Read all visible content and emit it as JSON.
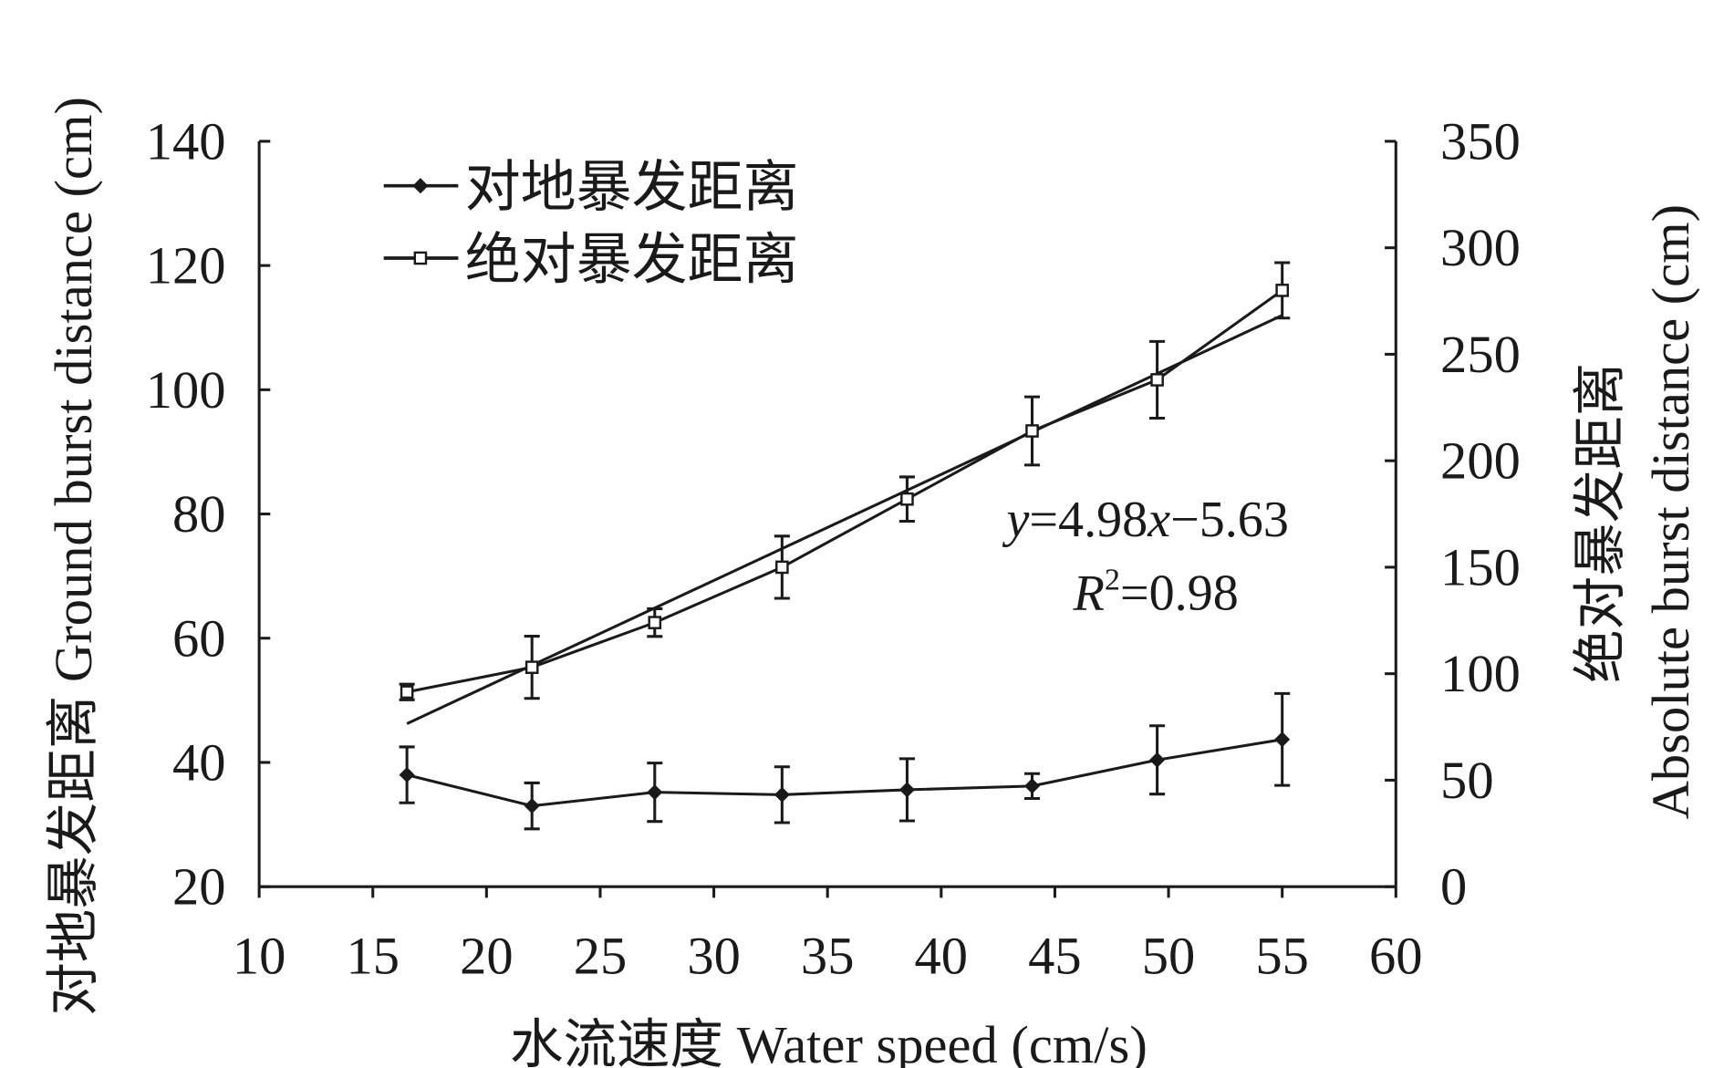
{
  "chart_data": {
    "type": "line",
    "xlabel": "水流速度 Water speed (cm/s)",
    "ylabel_left": "对地暴发距离 Ground burst distance (cm)",
    "ylabel_right_cn": "绝对暴发距离",
    "ylabel_right_en": "Absolute burst distance (cm)",
    "xlim": [
      10,
      60
    ],
    "xticks": [
      10,
      15,
      20,
      25,
      30,
      35,
      40,
      45,
      50,
      55,
      60
    ],
    "ylim_left": [
      20,
      140
    ],
    "yticks_left": [
      20,
      40,
      60,
      80,
      100,
      120,
      140
    ],
    "ylim_right": [
      0,
      350
    ],
    "yticks_right": [
      0,
      50,
      100,
      150,
      200,
      250,
      300,
      350
    ],
    "legend_position": "top-left",
    "series": [
      {
        "name": "对地暴发距离",
        "axis": "left",
        "marker": "diamond",
        "x": [
          16.5,
          22,
          27.4,
          33,
          38.5,
          44,
          49.5,
          55
        ],
        "y": [
          38,
          33,
          35.2,
          34.8,
          35.6,
          36.2,
          40.4,
          43.7
        ],
        "err": [
          4.5,
          3.7,
          4.7,
          4.5,
          5,
          2,
          5.5,
          7.4
        ]
      },
      {
        "name": "绝对暴发距离",
        "axis": "right",
        "marker": "square",
        "x": [
          16.5,
          22,
          27.4,
          33,
          38.5,
          44,
          49.5,
          55
        ],
        "y": [
          91.4,
          103,
          124,
          150,
          182,
          214,
          238,
          280
        ],
        "err": [
          3.7,
          14.6,
          6.5,
          14.6,
          10.4,
          16,
          18,
          13
        ]
      }
    ],
    "trendline": {
      "axis": "right",
      "slope": 4.98,
      "intercept": -5.63,
      "x_range": [
        16.5,
        55
      ],
      "equation": "y=4.98x−5.63",
      "equation_y": "y",
      "equation_rest": "=4.98",
      "equation_x": "x",
      "equation_tail": "−5.63",
      "r2_R": "R",
      "r2_sup": "2",
      "r2_value": "=0.98"
    }
  }
}
